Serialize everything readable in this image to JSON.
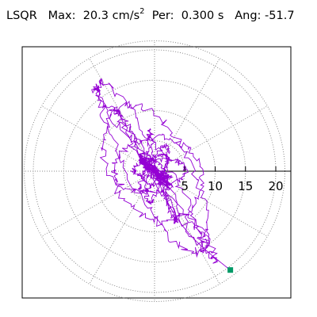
{
  "header": {
    "label": "LSQR",
    "max_label": "Max:",
    "max_value": "20.3",
    "max_unit": "cm/s",
    "max_unit_exp": "2",
    "per_label": "Per:",
    "per_value": "0.300 s",
    "ang_label": "Ang:",
    "ang_value": "-51.7"
  },
  "chart_data": {
    "type": "scatter",
    "subtype": "polar-orbit",
    "title": "LSQR Max: 20.3 cm/s2 Per: 0.300 s Ang: -51.7",
    "radial_ticks": [
      "5",
      "10",
      "15",
      "20"
    ],
    "radial_tick_values": [
      5,
      10,
      15,
      20
    ],
    "rmax": 21.5,
    "grid": "dotted",
    "trace_color": "#9400d3",
    "endpoint_color": "#009966",
    "endpoint": {
      "x": 12.5,
      "y": -16.3
    },
    "major_axis_angle_deg": -51.7,
    "peak_radius": 20.3
  }
}
